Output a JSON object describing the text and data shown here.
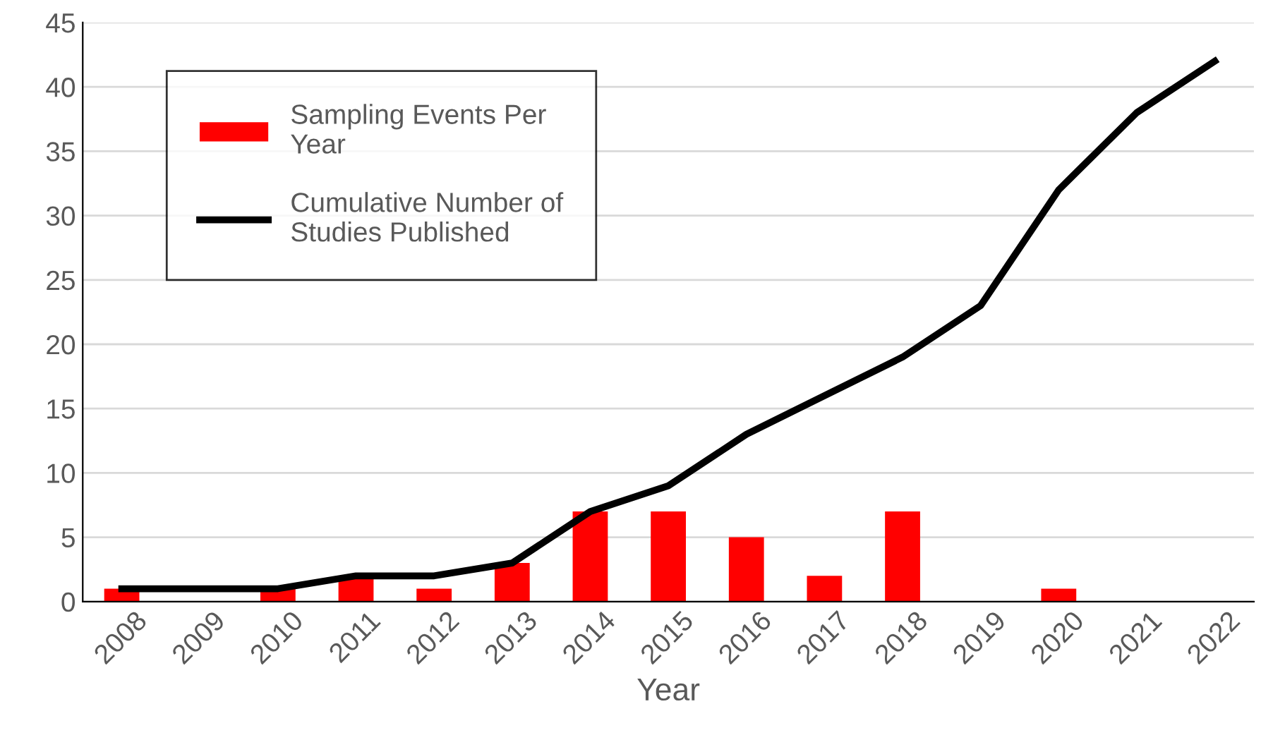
{
  "chart_data": {
    "type": "bar",
    "xlabel": "Year",
    "categories": [
      "2008",
      "2009",
      "2010",
      "2011",
      "2012",
      "2013",
      "2014",
      "2015",
      "2016",
      "2017",
      "2018",
      "2019",
      "2020",
      "2021",
      "2022"
    ],
    "series": [
      {
        "name": "Sampling Events Per Year",
        "color": "#ff0000",
        "values": [
          1,
          0,
          1,
          2,
          1,
          3,
          7,
          7,
          5,
          2,
          7,
          0,
          1,
          0,
          0
        ]
      },
      {
        "name": "Cumulative Number of Studies Published",
        "type": "line",
        "color": "#000000",
        "values": [
          1,
          1,
          1,
          2,
          2,
          3,
          7,
          9,
          13,
          16,
          19,
          23,
          32,
          38,
          42
        ]
      }
    ],
    "ylim": [
      0,
      45
    ],
    "yticks": [
      0,
      5,
      10,
      15,
      20,
      25,
      30,
      35,
      40,
      45
    ],
    "grid": "y",
    "legend": "top left",
    "marker": "none",
    "line_style": "solid"
  }
}
